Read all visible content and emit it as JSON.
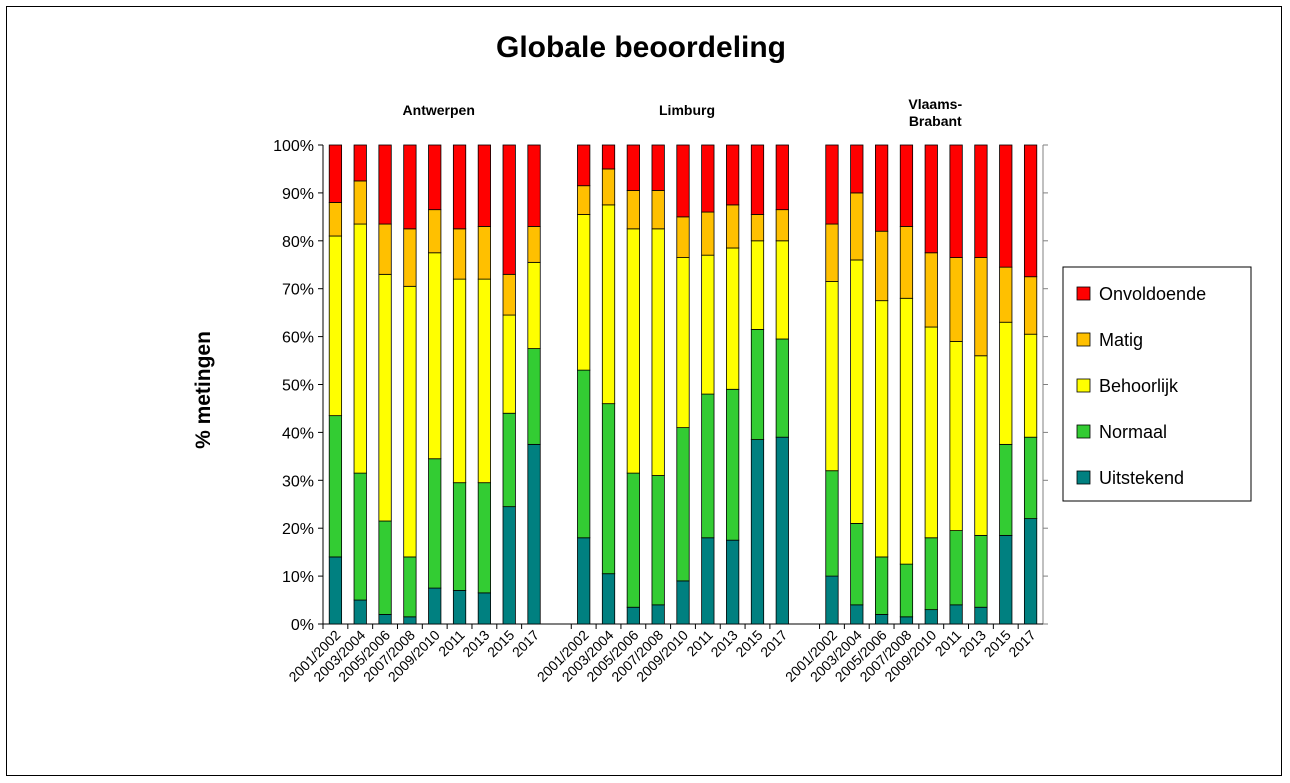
{
  "chart_data": {
    "type": "bar",
    "stacked": true,
    "title": "Globale beoordeling",
    "ylabel": "% metingen",
    "xlabel": "",
    "ylim": [
      0,
      100
    ],
    "yticks": [
      "0%",
      "10%",
      "20%",
      "30%",
      "40%",
      "50%",
      "60%",
      "70%",
      "80%",
      "90%",
      "100%"
    ],
    "grid": false,
    "legend_position": "right",
    "categories": [
      "2001/2002",
      "2003/2004",
      "2005/2006",
      "2007/2008",
      "2009/2010",
      "2011",
      "2013",
      "2015",
      "2017"
    ],
    "groups": [
      {
        "name": "Antwerpen",
        "series": [
          {
            "name": "Uitstekend",
            "values": [
              14,
              5,
              2,
              1.5,
              7.5,
              7,
              6.5,
              24.5,
              37.5
            ]
          },
          {
            "name": "Normaal",
            "values": [
              29.5,
              26.5,
              19.5,
              12.5,
              27,
              22.5,
              23,
              19.5,
              20
            ]
          },
          {
            "name": "Behoorlijk",
            "values": [
              37.5,
              52,
              51.5,
              56.5,
              43,
              42.5,
              42.5,
              20.5,
              18
            ]
          },
          {
            "name": "Matig",
            "values": [
              7,
              9,
              10.5,
              12,
              9,
              10.5,
              11,
              8.5,
              7.5
            ]
          },
          {
            "name": "Onvoldoende",
            "values": [
              12,
              7.5,
              16.5,
              17.5,
              13.5,
              17.5,
              17,
              27,
              17
            ]
          }
        ]
      },
      {
        "name": "Limburg",
        "series": [
          {
            "name": "Uitstekend",
            "values": [
              18,
              10.5,
              3.5,
              4,
              9,
              18,
              17.5,
              38.5,
              39
            ]
          },
          {
            "name": "Normaal",
            "values": [
              35,
              35.5,
              28,
              27,
              32,
              30,
              31.5,
              23,
              20.5
            ]
          },
          {
            "name": "Behoorlijk",
            "values": [
              32.5,
              41.5,
              51,
              51.5,
              35.5,
              29,
              29.5,
              18.5,
              20.5
            ]
          },
          {
            "name": "Matig",
            "values": [
              6,
              7.5,
              8,
              8,
              8.5,
              9,
              9,
              5.5,
              6.5
            ]
          },
          {
            "name": "Onvoldoende",
            "values": [
              8.5,
              5,
              9.5,
              9.5,
              15,
              14,
              12.5,
              14.5,
              13.5
            ]
          }
        ]
      },
      {
        "name": "Vlaams-\nBrabant",
        "series": [
          {
            "name": "Uitstekend",
            "values": [
              10,
              4,
              2,
              1.5,
              3,
              4,
              3.5,
              18.5,
              22
            ]
          },
          {
            "name": "Normaal",
            "values": [
              22,
              17,
              12,
              11,
              15,
              15.5,
              15,
              19,
              17
            ]
          },
          {
            "name": "Behoorlijk",
            "values": [
              39.5,
              55,
              53.5,
              55.5,
              44,
              39.5,
              37.5,
              25.5,
              21.5
            ]
          },
          {
            "name": "Matig",
            "values": [
              12,
              14,
              14.5,
              15,
              15.5,
              17.5,
              20.5,
              11.5,
              12
            ]
          },
          {
            "name": "Onvoldoende",
            "values": [
              16.5,
              10,
              18,
              17,
              22.5,
              23.5,
              23.5,
              25.5,
              27.5
            ]
          }
        ]
      }
    ],
    "colors": {
      "Uitstekend": "#008080",
      "Normaal": "#33cc33",
      "Behoorlijk": "#ffff00",
      "Matig": "#ffc000",
      "Onvoldoende": "#ff0000"
    },
    "legend": [
      "Onvoldoende",
      "Matig",
      "Behoorlijk",
      "Normaal",
      "Uitstekend"
    ]
  }
}
